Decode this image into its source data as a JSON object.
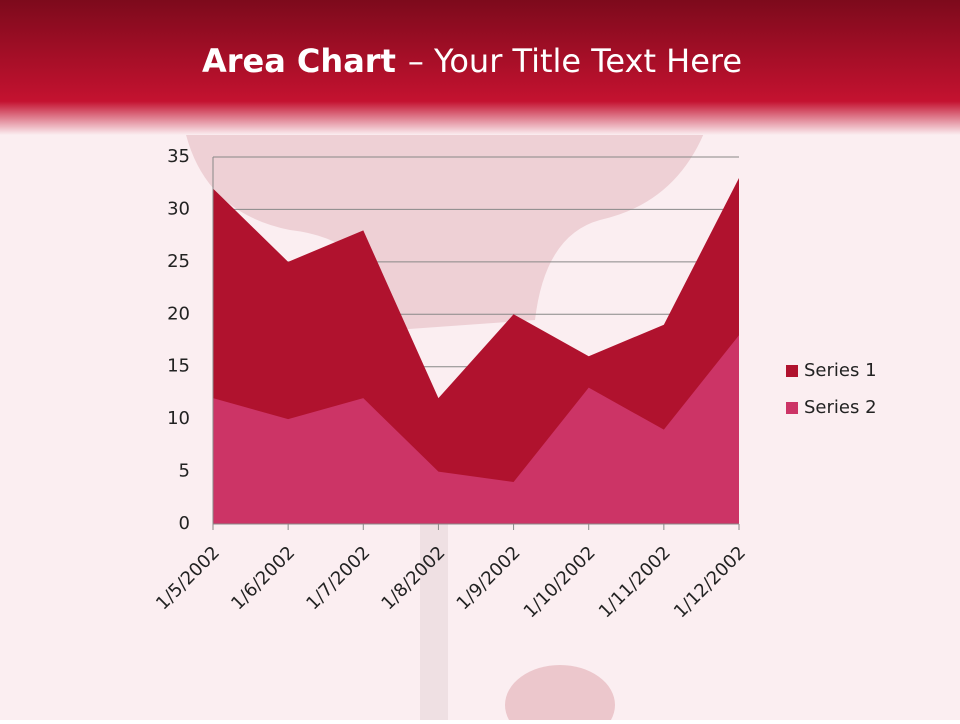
{
  "chart_data": {
    "type": "area",
    "title_parts": [
      "Area Chart",
      "– Your Title Text Here"
    ],
    "categories": [
      "1/5/2002",
      "1/6/2002",
      "1/7/2002",
      "1/8/2002",
      "1/9/2002",
      "1/10/2002",
      "1/11/2002",
      "1/12/2002"
    ],
    "series": [
      {
        "name": "Series 1",
        "color": "#b0122e",
        "values": [
          32,
          25,
          28,
          12,
          20,
          16,
          19,
          33
        ]
      },
      {
        "name": "Series 2",
        "color": "#cc3466",
        "values": [
          12,
          10,
          12,
          5,
          4,
          13,
          9,
          18
        ]
      }
    ],
    "ylim": [
      0,
      35
    ],
    "yticks": [
      0,
      5,
      10,
      15,
      20,
      25,
      30,
      35
    ],
    "grid": true,
    "legend": "right"
  }
}
